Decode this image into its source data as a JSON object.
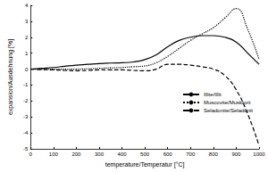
{
  "chart_data": {
    "type": "line",
    "x_label": "temperature/Temperatur [°C]",
    "y_label": "expansion/Ausdehnung [%]",
    "x": [
      0,
      50,
      100,
      150,
      200,
      250,
      300,
      350,
      400,
      450,
      500,
      550,
      600,
      650,
      700,
      750,
      800,
      850,
      900,
      950,
      1000
    ],
    "series": [
      {
        "name": "Illite/Illit",
        "color": "#000000",
        "line_style": "solid",
        "values": [
          0,
          0.05,
          0.1,
          0.18,
          0.25,
          0.3,
          0.35,
          0.38,
          0.4,
          0.45,
          0.6,
          0.9,
          1.4,
          1.8,
          2.0,
          2.1,
          2.1,
          2.0,
          1.7,
          1.0,
          0.3
        ]
      },
      {
        "name": "Muscovite/Muskovit",
        "color": "#000000",
        "line_style": "dotted",
        "values": [
          0,
          0,
          0,
          0,
          0,
          0.02,
          0.05,
          0.08,
          0.1,
          0.15,
          0.2,
          0.4,
          0.8,
          1.3,
          1.8,
          2.2,
          2.6,
          3.2,
          3.8,
          2.5,
          0.6
        ]
      },
      {
        "name": "Seladonite/Seladonit",
        "color": "#000000",
        "line_style": "dashed",
        "values": [
          0,
          -0.03,
          -0.05,
          -0.08,
          -0.1,
          -0.08,
          -0.05,
          -0.05,
          -0.05,
          -0.08,
          -0.1,
          0.0,
          0.3,
          0.3,
          0.25,
          0.15,
          0.0,
          -0.4,
          -1.3,
          -2.8,
          -4.8
        ]
      }
    ],
    "xlim": [
      0,
      1000
    ],
    "xticks": [
      0,
      100,
      200,
      300,
      400,
      500,
      600,
      700,
      800,
      900,
      1000
    ],
    "ylim": [
      -5,
      4
    ],
    "yticks": [
      -5,
      -4,
      -3,
      -2,
      -1,
      0,
      1,
      2,
      3,
      4
    ],
    "grid": false,
    "legend": "right"
  }
}
